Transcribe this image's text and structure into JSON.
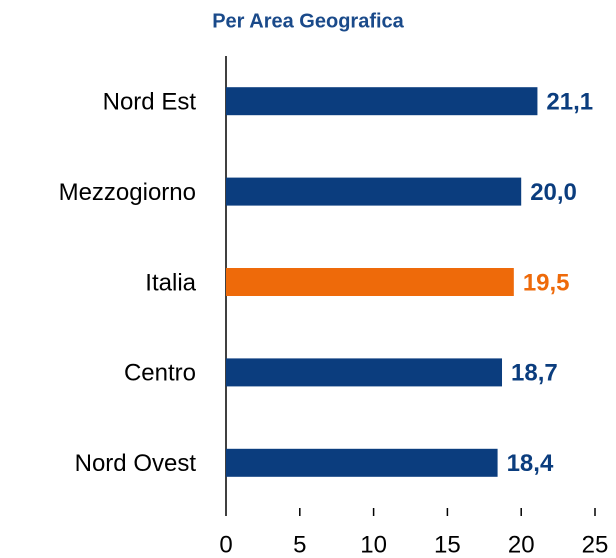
{
  "chart_data": {
    "type": "bar",
    "orientation": "horizontal",
    "title": "Per Area Geografica",
    "categories": [
      "Nord Est",
      "Mezzogiorno",
      "Italia",
      "Centro",
      "Nord Ovest"
    ],
    "values": [
      21.1,
      20.0,
      19.5,
      18.7,
      18.4
    ],
    "value_labels": [
      "21,1",
      "20,0",
      "19,5",
      "18,7",
      "18,4"
    ],
    "colors": [
      "#0b3d7e",
      "#0b3d7e",
      "#ee6a0a",
      "#0b3d7e",
      "#0b3d7e"
    ],
    "xlim": [
      0,
      25
    ],
    "xticks": [
      0,
      5,
      10,
      15,
      20,
      25
    ],
    "grid": false
  }
}
